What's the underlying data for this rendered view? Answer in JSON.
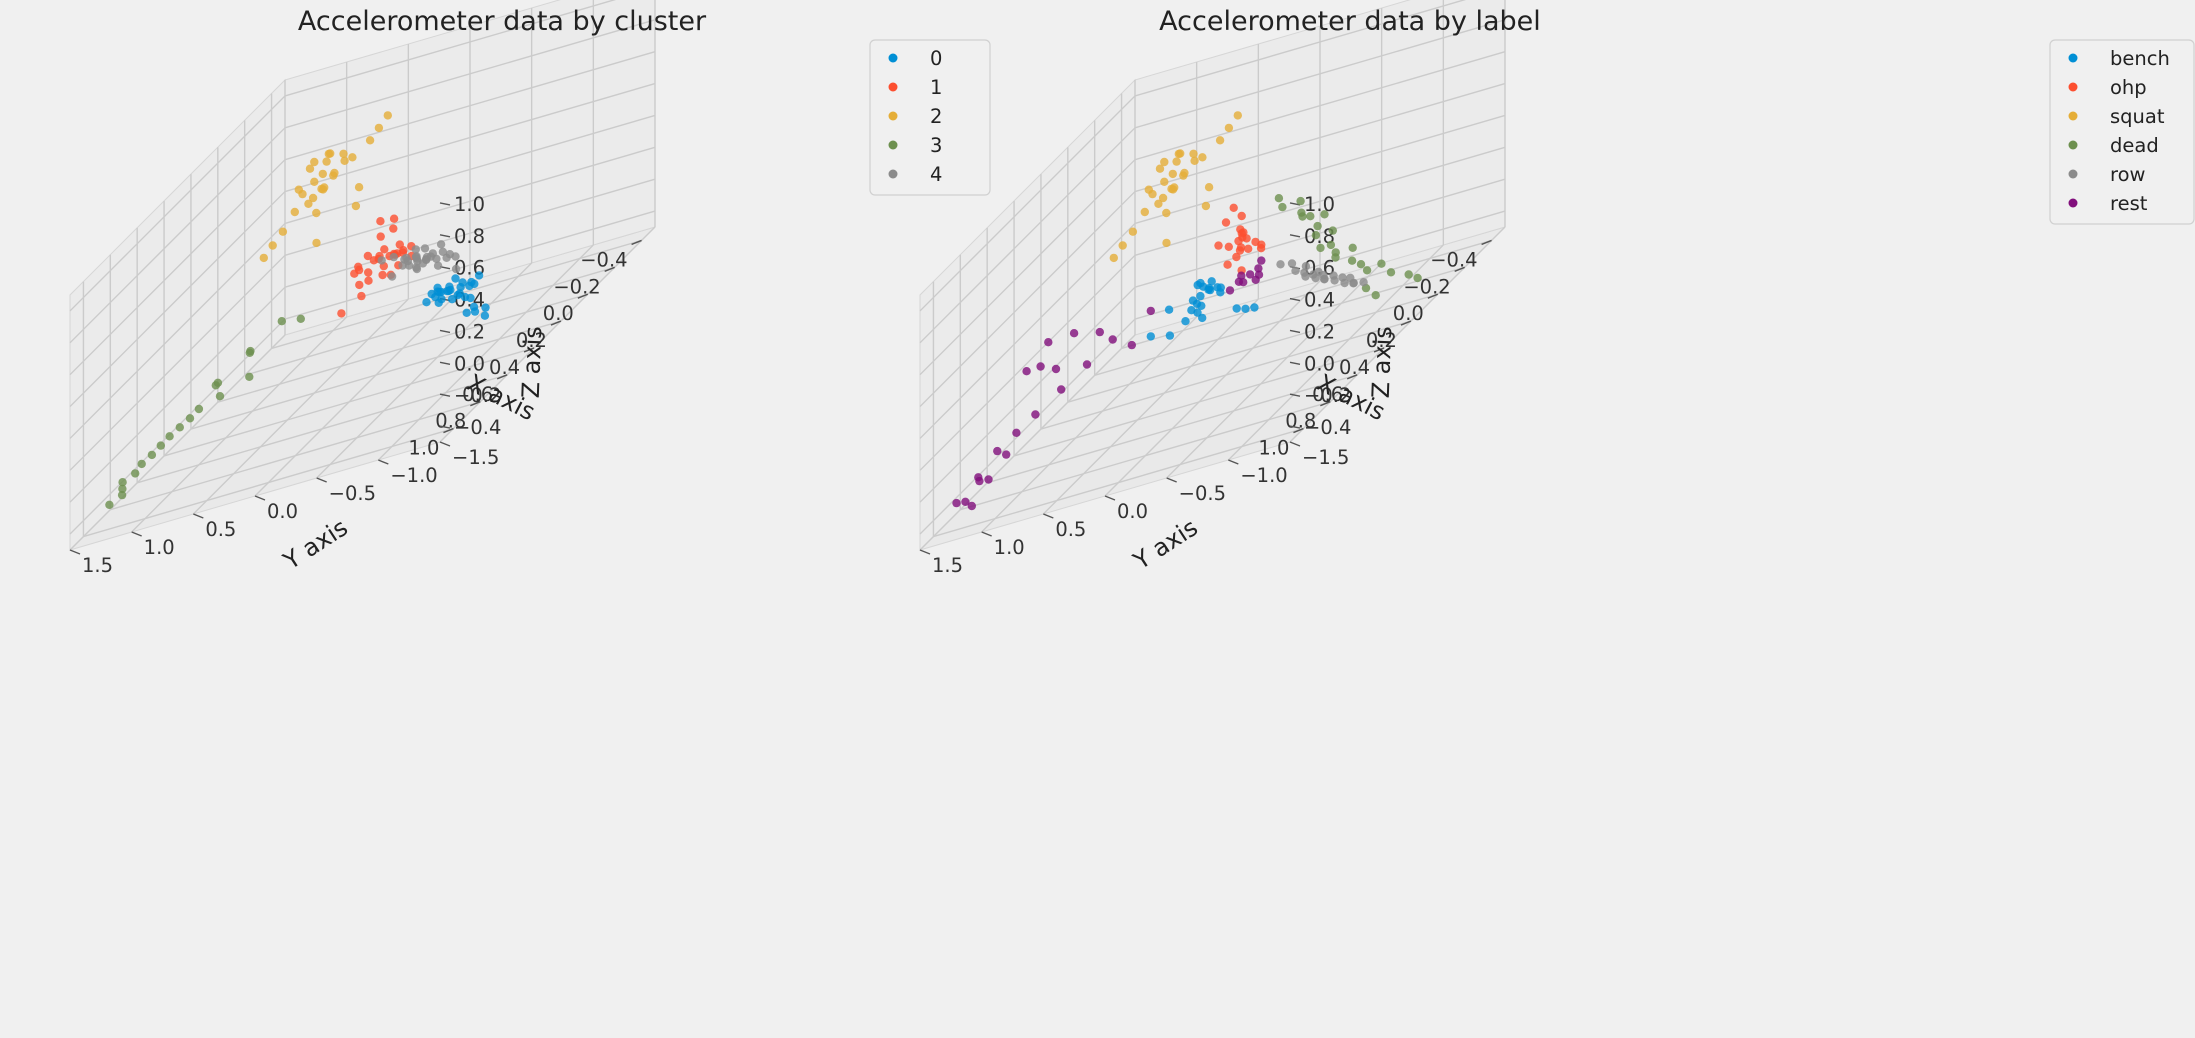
{
  "figure": {
    "background": "#f0f0f0"
  },
  "chart_data": [
    {
      "type": "scatter",
      "subtype": "3d",
      "title": "Accelerometer data by cluster",
      "xlabel": "X axis",
      "ylabel": "Y axis",
      "zlabel": "Z axis",
      "xlim": [
        -0.5,
        1.1
      ],
      "ylim": [
        -1.5,
        1.5
      ],
      "zlim": [
        -0.5,
        1.1
      ],
      "xticks": [
        "−0.4",
        "−0.2",
        "0.0",
        "0.2",
        "0.4",
        "0.6",
        "0.8",
        "1.0"
      ],
      "yticks": [
        "−1.5",
        "−1.0",
        "−0.5",
        "0.0",
        "0.5",
        "1.0",
        "1.5"
      ],
      "zticks": [
        "−0.4",
        "−0.2",
        "0.0",
        "0.2",
        "0.4",
        "0.6",
        "0.8",
        "1.0"
      ],
      "grid": true,
      "legend_position": "top-right",
      "series": [
        {
          "name": "0",
          "color": "#008fd5",
          "x": [
            -0.45,
            -0.43,
            -0.4,
            -0.38,
            -0.36,
            -0.35,
            -0.42,
            -0.39,
            -0.37,
            -0.41,
            -0.44,
            -0.34,
            -0.33,
            -0.38,
            -0.36,
            -0.4,
            -0.42,
            -0.39,
            -0.35,
            -0.37,
            -0.43,
            -0.32,
            -0.3,
            -0.34,
            -0.31,
            -0.33,
            -0.36,
            -0.38,
            -0.29,
            -0.28
          ],
          "y": [
            -0.05,
            0.0,
            0.05,
            0.1,
            0.02,
            -0.08,
            0.08,
            -0.02,
            0.12,
            0.15,
            -0.1,
            0.06,
            -0.04,
            0.18,
            0.2,
            -0.12,
            0.03,
            -0.06,
            0.09,
            0.14,
            -0.15,
            -0.2,
            -0.25,
            -0.3,
            -0.18,
            0.0,
            0.11,
            -0.09,
            -0.35,
            -0.28
          ],
          "z": [
            -0.5,
            -0.48,
            -0.46,
            -0.49,
            -0.44,
            -0.47,
            -0.45,
            -0.5,
            -0.43,
            -0.46,
            -0.49,
            -0.42,
            -0.48,
            -0.44,
            -0.47,
            -0.45,
            -0.41,
            -0.43,
            -0.49,
            -0.46,
            -0.44,
            -0.5,
            -0.55,
            -0.6,
            -0.58,
            -0.42,
            -0.4,
            -0.52,
            -0.62,
            -0.57
          ]
        },
        {
          "name": "1",
          "color": "#fc4f30",
          "x": [
            0.0,
            0.02,
            0.05,
            0.08,
            -0.02,
            0.1,
            0.12,
            0.04,
            0.06,
            0.14,
            0.16,
            -0.04,
            0.01,
            0.09,
            0.03,
            0.11,
            0.07,
            -0.06,
            0.18,
            0.13,
            0.05,
            0.15,
            -0.03,
            0.08,
            0.1,
            0.02,
            0.04,
            0.12,
            0.2,
            0.06
          ],
          "y": [
            0.0,
            0.05,
            0.1,
            0.02,
            -0.05,
            0.08,
            0.15,
            0.12,
            -0.02,
            0.2,
            0.06,
            0.04,
            -0.08,
            0.18,
            0.25,
            0.03,
            -0.04,
            0.09,
            0.14,
            0.22,
            0.3,
            -0.1,
            0.11,
            0.01,
            0.07,
            0.16,
            0.35,
            -0.06,
            0.28,
            0.13
          ],
          "z": [
            0.1,
            0.12,
            0.08,
            0.15,
            0.05,
            0.18,
            0.11,
            0.02,
            0.14,
            0.06,
            0.2,
            0.09,
            0.13,
            0.04,
            0.16,
            0.22,
            0.07,
            0.12,
            0.01,
            0.17,
            0.1,
            0.19,
            0.25,
            0.03,
            0.3,
            0.35,
            0.08,
            0.4,
            -0.05,
            0.14
          ]
        },
        {
          "name": "2",
          "color": "#e5ae38",
          "x": [
            0.1,
            0.12,
            0.15,
            0.18,
            0.2,
            0.08,
            0.14,
            0.16,
            0.22,
            0.11,
            0.19,
            0.13,
            0.17,
            0.09,
            0.21,
            0.24,
            0.26,
            0.06,
            0.04,
            0.02,
            0.25,
            0.28,
            0.15,
            0.18,
            0.12,
            0.3,
            0.22,
            0.1,
            0.05,
            0.2
          ],
          "y": [
            0.3,
            0.35,
            0.4,
            0.45,
            0.5,
            0.55,
            0.6,
            0.38,
            0.42,
            0.48,
            0.52,
            0.33,
            0.58,
            0.62,
            0.36,
            0.44,
            0.56,
            0.2,
            0.15,
            0.1,
            0.7,
            0.75,
            0.65,
            0.68,
            0.25,
            0.8,
            0.46,
            0.54,
            0.3,
            0.4
          ],
          "z": [
            0.85,
            0.9,
            0.8,
            0.75,
            0.95,
            0.7,
            0.88,
            0.82,
            0.78,
            0.92,
            0.72,
            0.86,
            0.68,
            0.76,
            0.98,
            0.65,
            0.84,
            0.9,
            0.95,
            1.0,
            0.6,
            0.55,
            0.74,
            0.66,
            0.55,
            0.5,
            0.45,
            0.8,
            0.62,
            0.93
          ]
        },
        {
          "name": "3",
          "color": "#6d904f",
          "x": [
            0.3,
            0.4,
            0.5,
            0.55,
            0.6,
            0.65,
            0.7,
            0.75,
            0.8,
            0.85,
            0.45,
            0.52,
            0.58,
            0.62,
            0.68,
            0.72,
            0.78,
            0.82,
            0.88,
            0.35
          ],
          "y": [
            0.5,
            0.8,
            0.7,
            0.9,
            1.0,
            1.1,
            1.2,
            1.3,
            1.4,
            1.35,
            0.75,
            0.95,
            0.85,
            1.05,
            1.15,
            1.25,
            1.32,
            1.38,
            1.42,
            0.6
          ],
          "z": [
            0.05,
            0.0,
            -0.1,
            -0.05,
            -0.15,
            -0.2,
            -0.25,
            -0.3,
            -0.35,
            -0.4,
            0.02,
            -0.08,
            -0.12,
            -0.18,
            -0.22,
            -0.28,
            -0.33,
            -0.38,
            -0.42,
            0.1
          ]
        },
        {
          "name": "4",
          "color": "#8b8b8b",
          "x": [
            -0.3,
            -0.28,
            -0.25,
            -0.22,
            -0.2,
            -0.18,
            -0.15,
            -0.12,
            -0.1,
            -0.26,
            -0.24,
            -0.21,
            -0.19,
            -0.16,
            -0.14,
            -0.11,
            -0.27,
            -0.23,
            -0.17,
            -0.13,
            -0.29,
            -0.08,
            -0.06,
            -0.2,
            -0.15,
            -0.25,
            -0.1,
            -0.18,
            -0.22,
            -0.12
          ],
          "y": [
            -0.1,
            -0.05,
            0.0,
            0.05,
            0.1,
            0.0,
            -0.08,
            0.02,
            0.08,
            0.12,
            -0.12,
            0.04,
            -0.02,
            0.06,
            0.14,
            -0.06,
            0.18,
            0.2,
            -0.14,
            0.1,
            0.03,
            0.16,
            -0.04,
            0.22,
            0.25,
            -0.16,
            0.28,
            0.09,
            0.13,
            -0.18
          ],
          "z": [
            -0.2,
            -0.18,
            -0.15,
            -0.12,
            -0.1,
            -0.08,
            -0.05,
            -0.02,
            0.0,
            -0.16,
            -0.14,
            -0.11,
            -0.09,
            -0.06,
            -0.03,
            0.02,
            -0.19,
            -0.13,
            -0.07,
            -0.04,
            -0.22,
            0.04,
            0.06,
            -0.1,
            -0.12,
            -0.25,
            0.03,
            -0.06,
            -0.15,
            0.01
          ]
        }
      ]
    },
    {
      "type": "scatter",
      "subtype": "3d",
      "title": "Accelerometer data by label",
      "xlabel": "X axis",
      "ylabel": "Y axis",
      "zlabel": "Z axis",
      "xlim": [
        -0.5,
        1.1
      ],
      "ylim": [
        -1.5,
        1.5
      ],
      "zlim": [
        -0.5,
        1.1
      ],
      "xticks": [
        "−0.4",
        "−0.2",
        "0.0",
        "0.2",
        "0.4",
        "0.6",
        "0.8",
        "1.0"
      ],
      "yticks": [
        "−1.5",
        "−1.0",
        "−0.5",
        "0.0",
        "0.5",
        "1.0",
        "1.5"
      ],
      "zticks": [
        "−0.4",
        "−0.2",
        "0.0",
        "0.2",
        "0.4",
        "0.6",
        "0.8",
        "1.0"
      ],
      "grid": true,
      "legend_position": "top-right",
      "series": [
        {
          "name": "bench",
          "color": "#008fd5",
          "x": [
            0.15,
            0.18,
            0.2,
            0.22,
            0.25,
            0.16,
            0.19,
            0.21,
            0.24,
            0.17,
            0.23,
            0.26,
            0.14,
            0.2,
            0.22,
            0.18,
            0.28,
            0.12,
            0.1,
            0.08,
            0.25,
            0.21,
            0.19,
            0.3
          ],
          "y": [
            0.1,
            0.15,
            0.2,
            0.12,
            0.18,
            0.25,
            0.08,
            0.22,
            0.14,
            0.3,
            0.16,
            0.05,
            0.2,
            0.28,
            0.02,
            0.35,
            0.12,
            0.0,
            -0.05,
            -0.1,
            0.4,
            0.45,
            0.24,
            0.5
          ],
          "z": [
            0.0,
            0.05,
            -0.02,
            0.08,
            0.03,
            0.1,
            0.06,
            -0.05,
            0.12,
            0.01,
            -0.08,
            0.15,
            0.04,
            -0.03,
            0.07,
            -0.1,
            0.09,
            -0.15,
            -0.18,
            -0.2,
            -0.12,
            0.02,
            0.11,
            -0.06
          ]
        },
        {
          "name": "ohp",
          "color": "#fc4f30",
          "x": [
            -0.02,
            0.0,
            0.03,
            0.06,
            0.08,
            0.02,
            0.05,
            -0.04,
            0.1,
            0.04,
            0.07,
            0.01,
            0.09,
            -0.03,
            0.06,
            0.12,
            0.0,
            0.05,
            -0.06,
            0.03
          ],
          "y": [
            0.0,
            0.05,
            0.1,
            0.02,
            -0.05,
            0.08,
            0.15,
            0.12,
            -0.02,
            0.06,
            0.04,
            -0.08,
            0.18,
            0.25,
            0.03,
            -0.04,
            0.09,
            0.14,
            0.22,
            -0.1
          ],
          "z": [
            0.15,
            0.2,
            0.12,
            0.25,
            0.18,
            0.28,
            0.1,
            0.22,
            0.3,
            0.16,
            0.24,
            0.14,
            0.26,
            0.32,
            0.19,
            0.08,
            0.35,
            0.21,
            0.38,
            0.13
          ]
        },
        {
          "name": "squat",
          "color": "#e5ae38",
          "x": [
            0.1,
            0.12,
            0.15,
            0.18,
            0.2,
            0.08,
            0.14,
            0.16,
            0.22,
            0.11,
            0.19,
            0.13,
            0.17,
            0.09,
            0.21,
            0.24,
            0.26,
            0.06,
            0.04,
            0.02,
            0.25,
            0.28,
            0.15,
            0.18,
            0.12,
            0.3,
            0.22,
            0.1,
            0.05,
            0.2
          ],
          "y": [
            0.3,
            0.35,
            0.4,
            0.45,
            0.5,
            0.55,
            0.6,
            0.38,
            0.42,
            0.48,
            0.52,
            0.33,
            0.58,
            0.62,
            0.36,
            0.44,
            0.56,
            0.2,
            0.15,
            0.1,
            0.7,
            0.75,
            0.65,
            0.68,
            0.25,
            0.8,
            0.46,
            0.54,
            0.3,
            0.4
          ],
          "z": [
            0.85,
            0.9,
            0.8,
            0.75,
            0.95,
            0.7,
            0.88,
            0.82,
            0.78,
            0.92,
            0.72,
            0.86,
            0.68,
            0.76,
            0.98,
            0.65,
            0.84,
            0.9,
            0.95,
            1.0,
            0.6,
            0.55,
            0.74,
            0.66,
            0.55,
            0.5,
            0.45,
            0.8,
            0.62,
            0.93
          ]
        },
        {
          "name": "dead",
          "color": "#6d904f",
          "x": [
            -0.3,
            -0.28,
            -0.25,
            -0.32,
            -0.35,
            -0.27,
            -0.22,
            -0.3,
            -0.33,
            -0.26,
            -0.24,
            -0.29,
            -0.31,
            -0.2,
            -0.18,
            -0.36,
            -0.34,
            -0.23,
            -0.21,
            -0.28,
            -0.38,
            -0.4,
            -0.26,
            -0.24
          ],
          "y": [
            -0.6,
            -0.5,
            -0.4,
            -0.3,
            -0.2,
            -0.1,
            0.0,
            -0.55,
            -0.45,
            -0.35,
            -0.25,
            -0.15,
            -0.05,
            -0.7,
            -0.8,
            -0.65,
            -0.75,
            -0.42,
            -0.32,
            -0.22,
            -0.85,
            -0.9,
            -0.12,
            0.05
          ],
          "z": [
            -0.4,
            -0.3,
            -0.2,
            -0.1,
            0.0,
            0.1,
            0.2,
            -0.35,
            -0.25,
            -0.15,
            -0.05,
            0.05,
            0.15,
            -0.45,
            -0.5,
            -0.42,
            -0.48,
            -0.22,
            -0.12,
            -0.02,
            -0.55,
            -0.6,
            0.08,
            0.25
          ]
        },
        {
          "name": "row",
          "color": "#8b8b8b",
          "x": [
            -0.3,
            -0.28,
            -0.25,
            -0.22,
            -0.2,
            -0.18,
            -0.26,
            -0.24,
            -0.21,
            -0.19,
            -0.27,
            -0.23,
            -0.29,
            -0.32,
            -0.34,
            -0.2,
            -0.16,
            -0.31,
            -0.25,
            -0.22
          ],
          "y": [
            -0.4,
            -0.35,
            -0.3,
            -0.25,
            -0.2,
            -0.15,
            -0.38,
            -0.32,
            -0.28,
            -0.22,
            -0.45,
            -0.18,
            -0.5,
            -0.55,
            -0.42,
            -0.1,
            -0.05,
            -0.48,
            -0.26,
            -0.34
          ],
          "z": [
            -0.4,
            -0.36,
            -0.32,
            -0.28,
            -0.24,
            -0.2,
            -0.38,
            -0.34,
            -0.3,
            -0.26,
            -0.42,
            -0.22,
            -0.45,
            -0.48,
            -0.44,
            -0.16,
            -0.12,
            -0.46,
            -0.29,
            -0.33
          ]
        },
        {
          "name": "rest",
          "color": "#810f7c",
          "x": [
            0.0,
            0.02,
            0.04,
            -0.02,
            0.05,
            0.03,
            -0.04,
            0.01,
            0.06,
            0.3,
            0.4,
            0.5,
            0.6,
            0.7,
            0.75,
            0.8,
            0.85,
            0.9,
            0.55,
            0.65,
            0.72,
            0.78,
            0.82,
            0.88,
            0.92,
            0.45,
            0.35,
            0.62,
            0.68,
            0.86
          ],
          "y": [
            -0.05,
            0.0,
            0.05,
            0.1,
            -0.1,
            0.08,
            0.02,
            -0.08,
            0.12,
            0.5,
            0.7,
            0.8,
            0.9,
            1.0,
            1.1,
            1.2,
            1.3,
            1.35,
            0.85,
            0.95,
            1.05,
            1.15,
            1.25,
            1.32,
            1.4,
            0.75,
            0.6,
            0.92,
            0.98,
            1.28
          ],
          "z": [
            -0.05,
            -0.02,
            0.0,
            -0.08,
            0.02,
            -0.04,
            -0.1,
            0.04,
            -0.06,
            0.1,
            0.05,
            0.0,
            -0.05,
            -0.1,
            -0.15,
            -0.2,
            -0.3,
            -0.4,
            0.25,
            0.3,
            0.2,
            -0.25,
            -0.35,
            -0.45,
            -0.38,
            0.15,
            -0.05,
            0.1,
            0.18,
            -0.32
          ]
        }
      ]
    }
  ]
}
